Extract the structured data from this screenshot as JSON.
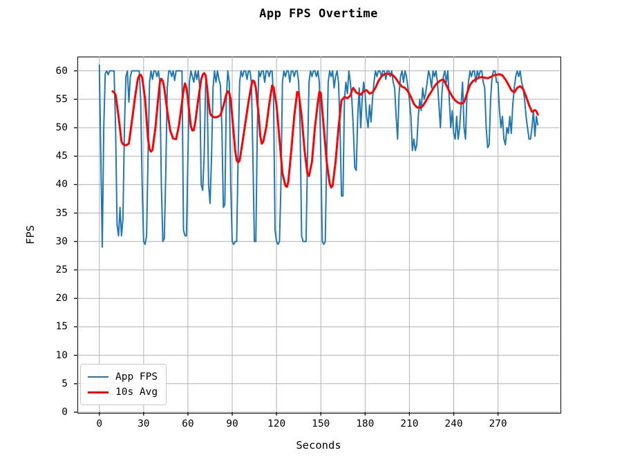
{
  "figure": {
    "title": "App FPS Overtime"
  },
  "chart_data": {
    "type": "line",
    "title": "App FPS Overtime",
    "xlabel": "Seconds",
    "ylabel": "FPS",
    "xlim": [
      -14.85,
      311.85
    ],
    "ylim": [
      0,
      62.5
    ],
    "x_ticks": [
      0,
      30,
      60,
      90,
      120,
      150,
      180,
      210,
      240,
      270
    ],
    "y_ticks": [
      0,
      5,
      10,
      15,
      20,
      25,
      30,
      35,
      40,
      45,
      50,
      55,
      60
    ],
    "grid": true,
    "grid_color": "#b0b0b0",
    "background_color": "#ffffff",
    "legend": {
      "position": "lower left",
      "entries": [
        {
          "label": "App FPS",
          "color": "#1f77b4",
          "line_width": 2
        },
        {
          "label": "10s Avg",
          "color": "#ff0000",
          "line_width": 3
        }
      ]
    },
    "series": [
      {
        "name": "App FPS",
        "color": "#1f77b4",
        "line_width": 2,
        "x_start": 0,
        "x_step": 1,
        "values": [
          61,
          45,
          29,
          50,
          59.5,
          60,
          59.3,
          60,
          60,
          60,
          60,
          50,
          33,
          31,
          36,
          31,
          34,
          50,
          59,
          60,
          54.5,
          59,
          60,
          60,
          60,
          60,
          60,
          60,
          55,
          40,
          30,
          29.5,
          31,
          45,
          58,
          60,
          58.5,
          60,
          60,
          59,
          60,
          58,
          40,
          30,
          30.5,
          42,
          57,
          60,
          60,
          59,
          60,
          58.3,
          60,
          60,
          60,
          60,
          60,
          32,
          31,
          31,
          45,
          58,
          60,
          59,
          58,
          60,
          58.5,
          60,
          57,
          40,
          39,
          45,
          58,
          57,
          40,
          36.7,
          45,
          57,
          60,
          58,
          60,
          58.5,
          57.5,
          50,
          36,
          36.5,
          55,
          60,
          58,
          40,
          30,
          29.5,
          30,
          30,
          45,
          58,
          60,
          59,
          60,
          60,
          58.5,
          60,
          60,
          58,
          45,
          30,
          30,
          50,
          60,
          59,
          60,
          60,
          58,
          60,
          60,
          59,
          60,
          60,
          55,
          32,
          30,
          29.5,
          30,
          40,
          58,
          60,
          59,
          60,
          60,
          58,
          60,
          60,
          59,
          60,
          60,
          58,
          50,
          31,
          30,
          30,
          30,
          45,
          58,
          60,
          59,
          60,
          60,
          59,
          60,
          58,
          45,
          30,
          29.5,
          30,
          45,
          58,
          60,
          59,
          60,
          57,
          59,
          60,
          58,
          50,
          38,
          38,
          55,
          58,
          56,
          60,
          58,
          55,
          50,
          43,
          42.5,
          52,
          57,
          50,
          55,
          58,
          56,
          52,
          50,
          54,
          51,
          55,
          58,
          60,
          59,
          60,
          60,
          59,
          60,
          60,
          58.5,
          60,
          60,
          59,
          60,
          58,
          57,
          52,
          48,
          56,
          59,
          60,
          58,
          60,
          59,
          57,
          55,
          52,
          46,
          48,
          46,
          47,
          52,
          55,
          53,
          57,
          55,
          56,
          58,
          60,
          59,
          57,
          60,
          59,
          60,
          58,
          54,
          50,
          56,
          59,
          60,
          58,
          60,
          55,
          50,
          53,
          49,
          48,
          52,
          48,
          50,
          54,
          58,
          50,
          48,
          56,
          58,
          60,
          59,
          60,
          60,
          58,
          60,
          59,
          60,
          60,
          58,
          57,
          50,
          46.5,
          47,
          55,
          59,
          60,
          60,
          58,
          58,
          53,
          50,
          52,
          48,
          47,
          50,
          49,
          52,
          49,
          54,
          57,
          59,
          60,
          59,
          60,
          58,
          57,
          55,
          52,
          50,
          48,
          48,
          50,
          53,
          48.5,
          52,
          50.5
        ]
      },
      {
        "name": "10s Avg",
        "color": "#ff0000",
        "line_width": 3,
        "description": "10-second moving average of App FPS",
        "points": [
          [
            9,
            56.4
          ],
          [
            10,
            56.2
          ],
          [
            11,
            55.8
          ],
          [
            13,
            52
          ],
          [
            15,
            47.6
          ],
          [
            16,
            47.1
          ],
          [
            18,
            46.9
          ],
          [
            20,
            47.2
          ],
          [
            22,
            51
          ],
          [
            24,
            55
          ],
          [
            26,
            58.5
          ],
          [
            27,
            59.2
          ],
          [
            28,
            59.3
          ],
          [
            29,
            58.8
          ],
          [
            31,
            55
          ],
          [
            33,
            48
          ],
          [
            34,
            46.2
          ],
          [
            35,
            45.8
          ],
          [
            36,
            46.1
          ],
          [
            38,
            50
          ],
          [
            40,
            55.5
          ],
          [
            41,
            58
          ],
          [
            42,
            58.6
          ],
          [
            43,
            58.2
          ],
          [
            44,
            57
          ],
          [
            46,
            53
          ],
          [
            48,
            49.5
          ],
          [
            50,
            48.1
          ],
          [
            52,
            48.0
          ],
          [
            54,
            50.5
          ],
          [
            56,
            54.5
          ],
          [
            57,
            56.5
          ],
          [
            58,
            57.8
          ],
          [
            59,
            57.0
          ],
          [
            60,
            55
          ],
          [
            61,
            52.5
          ],
          [
            62,
            50.3
          ],
          [
            63,
            49.5
          ],
          [
            64,
            49.6
          ],
          [
            65,
            51
          ],
          [
            67,
            55
          ],
          [
            69,
            58.5
          ],
          [
            70,
            59.3
          ],
          [
            71,
            59.6
          ],
          [
            72,
            59.2
          ],
          [
            73,
            57
          ],
          [
            74,
            54.5
          ],
          [
            75,
            52.5
          ],
          [
            76,
            52.1
          ],
          [
            78,
            51.8
          ],
          [
            80,
            51.9
          ],
          [
            82,
            52.2
          ],
          [
            84,
            53.8
          ],
          [
            86,
            55.9
          ],
          [
            87,
            56.4
          ],
          [
            88,
            56.1
          ],
          [
            89,
            55
          ],
          [
            90,
            52
          ],
          [
            91,
            49
          ],
          [
            92,
            46
          ],
          [
            93,
            44.3
          ],
          [
            94,
            43.9
          ],
          [
            95,
            44.2
          ],
          [
            97,
            47.5
          ],
          [
            99,
            51
          ],
          [
            101,
            54.5
          ],
          [
            103,
            57.5
          ],
          [
            104,
            58.3
          ],
          [
            105,
            58.1
          ],
          [
            106,
            57
          ],
          [
            108,
            52
          ],
          [
            109,
            48.5
          ],
          [
            110,
            47.2
          ],
          [
            111,
            47.5
          ],
          [
            113,
            50
          ],
          [
            115,
            54
          ],
          [
            117,
            57.4
          ],
          [
            118,
            57.1
          ],
          [
            120,
            54
          ],
          [
            122,
            48
          ],
          [
            124,
            42
          ],
          [
            126,
            39.8
          ],
          [
            127,
            39.6
          ],
          [
            128,
            40.5
          ],
          [
            130,
            46
          ],
          [
            132,
            52
          ],
          [
            134,
            56.3
          ],
          [
            135,
            56.1
          ],
          [
            137,
            52
          ],
          [
            139,
            46
          ],
          [
            141,
            41.8
          ],
          [
            142,
            41.5
          ],
          [
            144,
            44
          ],
          [
            146,
            50
          ],
          [
            148,
            54.5
          ],
          [
            149,
            56.3
          ],
          [
            150,
            56.1
          ],
          [
            152,
            50
          ],
          [
            154,
            44
          ],
          [
            156,
            40.2
          ],
          [
            157,
            39.5
          ],
          [
            158,
            39.8
          ],
          [
            160,
            44
          ],
          [
            162,
            50
          ],
          [
            164,
            54.8
          ],
          [
            166,
            55.4
          ],
          [
            168,
            55.2
          ],
          [
            170,
            55.6
          ],
          [
            171,
            56.5
          ],
          [
            172,
            57
          ],
          [
            174,
            56.2
          ],
          [
            176,
            55.9
          ],
          [
            177,
            55.8
          ],
          [
            179,
            56.4
          ],
          [
            181,
            56.6
          ],
          [
            183,
            56.0
          ],
          [
            185,
            56.2
          ],
          [
            187,
            57
          ],
          [
            189,
            58.2
          ],
          [
            191,
            59
          ],
          [
            193,
            59.4
          ],
          [
            195,
            59.5
          ],
          [
            197,
            59.4
          ],
          [
            199,
            59.2
          ],
          [
            201,
            58.6
          ],
          [
            203,
            57.8
          ],
          [
            205,
            57.2
          ],
          [
            207,
            57.0
          ],
          [
            209,
            56.4
          ],
          [
            211,
            55.4
          ],
          [
            213,
            54.2
          ],
          [
            215,
            53.6
          ],
          [
            217,
            53.5
          ],
          [
            219,
            53.8
          ],
          [
            221,
            54.6
          ],
          [
            223,
            55.6
          ],
          [
            225,
            56.4
          ],
          [
            227,
            57.3
          ],
          [
            229,
            57.9
          ],
          [
            231,
            58.3
          ],
          [
            233,
            58.5
          ],
          [
            235,
            57.5
          ],
          [
            237,
            56.4
          ],
          [
            239,
            55.5
          ],
          [
            241,
            54.8
          ],
          [
            243,
            54.4
          ],
          [
            245,
            54.2
          ],
          [
            247,
            54.5
          ],
          [
            249,
            56
          ],
          [
            251,
            57.5
          ],
          [
            253,
            58.2
          ],
          [
            255,
            58.5
          ],
          [
            257,
            58.8
          ],
          [
            259,
            58.9
          ],
          [
            261,
            58.8
          ],
          [
            263,
            58.7
          ],
          [
            265,
            58.9
          ],
          [
            267,
            59.2
          ],
          [
            269,
            59.3
          ],
          [
            271,
            59.4
          ],
          [
            273,
            59.2
          ],
          [
            275,
            58.5
          ],
          [
            277,
            57.6
          ],
          [
            279,
            56.6
          ],
          [
            281,
            56.2
          ],
          [
            283,
            57.0
          ],
          [
            285,
            57.3
          ],
          [
            287,
            56.8
          ],
          [
            289,
            55.5
          ],
          [
            291,
            54.0
          ],
          [
            293,
            52.8
          ],
          [
            295,
            53.1
          ],
          [
            296,
            52.9
          ],
          [
            297,
            52.3
          ]
        ]
      }
    ]
  }
}
